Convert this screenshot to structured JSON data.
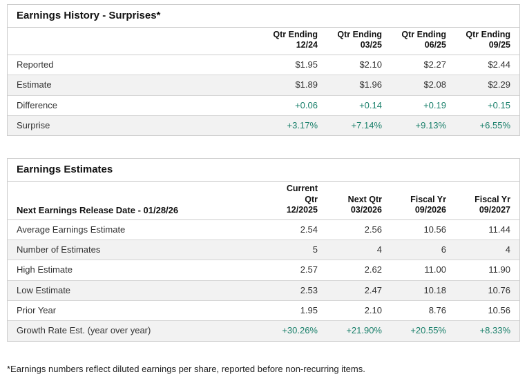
{
  "accent_green": "#1a806b",
  "history": {
    "title": "Earnings History - Surprises*",
    "label_header": "",
    "columns": [
      "Qtr Ending\n12/24",
      "Qtr Ending\n03/25",
      "Qtr Ending\n06/25",
      "Qtr Ending\n09/25"
    ],
    "rows": [
      {
        "label": "Reported",
        "values": [
          "$1.95",
          "$2.10",
          "$2.27",
          "$2.44"
        ],
        "green": false
      },
      {
        "label": "Estimate",
        "values": [
          "$1.89",
          "$1.96",
          "$2.08",
          "$2.29"
        ],
        "green": false
      },
      {
        "label": "Difference",
        "values": [
          "+0.06",
          "+0.14",
          "+0.19",
          "+0.15"
        ],
        "green": true
      },
      {
        "label": "Surprise",
        "values": [
          "+3.17%",
          "+7.14%",
          "+9.13%",
          "+6.55%"
        ],
        "green": true
      }
    ]
  },
  "estimates": {
    "title": "Earnings Estimates",
    "label_header": "Next Earnings Release Date - 01/28/26",
    "columns": [
      "Current Qtr\n12/2025",
      "Next Qtr\n03/2026",
      "Fiscal Yr\n09/2026",
      "Fiscal Yr\n09/2027"
    ],
    "rows": [
      {
        "label": "Average Earnings Estimate",
        "values": [
          "2.54",
          "2.56",
          "10.56",
          "11.44"
        ],
        "green": false
      },
      {
        "label": "Number of Estimates",
        "values": [
          "5",
          "4",
          "6",
          "4"
        ],
        "green": false
      },
      {
        "label": "High Estimate",
        "values": [
          "2.57",
          "2.62",
          "11.00",
          "11.90"
        ],
        "green": false
      },
      {
        "label": "Low Estimate",
        "values": [
          "2.53",
          "2.47",
          "10.18",
          "10.76"
        ],
        "green": false
      },
      {
        "label": "Prior Year",
        "values": [
          "1.95",
          "2.10",
          "8.76",
          "10.56"
        ],
        "green": false
      },
      {
        "label": "Growth Rate Est. (year over year)",
        "values": [
          "+30.26%",
          "+21.90%",
          "+20.55%",
          "+8.33%"
        ],
        "green": true
      }
    ]
  },
  "footnote": "*Earnings numbers reflect diluted earnings per share, reported before non-recurring items."
}
